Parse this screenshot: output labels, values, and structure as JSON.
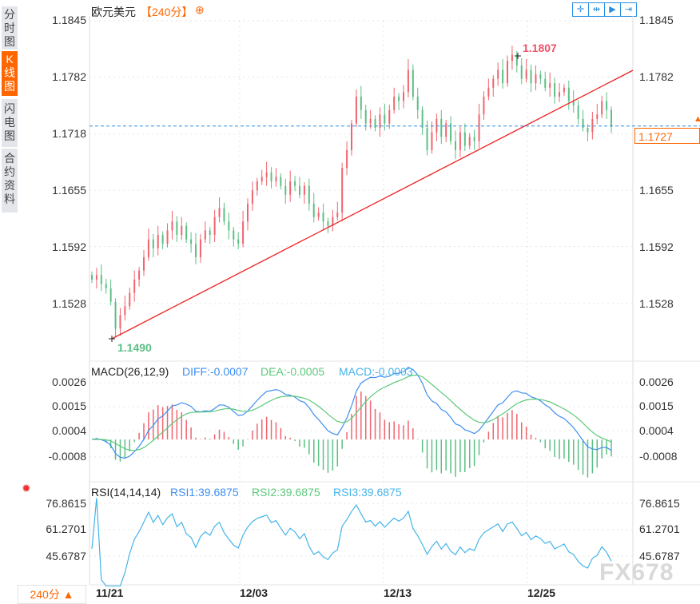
{
  "sidebar": {
    "tabs": [
      {
        "label": "分时图",
        "active": false
      },
      {
        "label": "K线图",
        "active": true
      },
      {
        "label": "闪电图",
        "active": false
      },
      {
        "label": "合约资料",
        "active": false
      }
    ]
  },
  "header": {
    "symbol": "欧元美元",
    "period": "【240分】",
    "add_icon": "circle-plus-icon",
    "tools": [
      {
        "name": "crosshair-icon",
        "glyph": "✛"
      },
      {
        "name": "zoom-range-icon",
        "glyph": "⇹"
      },
      {
        "name": "play-icon",
        "glyph": "▶"
      },
      {
        "name": "scroll-end-icon",
        "glyph": "⇥"
      }
    ]
  },
  "colors": {
    "up": "#f0646e",
    "down": "#5cbf85",
    "accent": "#ff6600",
    "trend": "#ee2222",
    "diff": "#3d8ff0",
    "dea": "#5cc97a",
    "rsi": "#45b4e8",
    "dashed": "#2a8ee0"
  },
  "chart_data": {
    "type": "candlestick",
    "price_ticks": [
      "1.1845",
      "1.1782",
      "1.1718",
      "1.1655",
      "1.1592",
      "1.1528"
    ],
    "price_tick_values": [
      1.1845,
      1.1782,
      1.1718,
      1.1655,
      1.1592,
      1.1528
    ],
    "current_price": "1.1727",
    "high_label": "1.1807",
    "low_label": "1.1490",
    "x_ticks": [
      "11/21",
      "12/03",
      "12/13",
      "12/25"
    ],
    "closes": [
      1.1555,
      1.156,
      1.155,
      1.1545,
      1.153,
      1.15,
      1.1515,
      1.1525,
      1.154,
      1.1555,
      1.1565,
      1.158,
      1.16,
      1.159,
      1.1605,
      1.1595,
      1.161,
      1.162,
      1.1605,
      1.1615,
      1.16,
      1.1595,
      1.158,
      1.16,
      1.161,
      1.1605,
      1.1625,
      1.1635,
      1.162,
      1.161,
      1.16,
      1.1595,
      1.162,
      1.164,
      1.1655,
      1.1665,
      1.167,
      1.1675,
      1.1665,
      1.167,
      1.166,
      1.165,
      1.1665,
      1.166,
      1.165,
      1.166,
      1.164,
      1.1625,
      1.163,
      1.162,
      1.1615,
      1.1625,
      1.163,
      1.168,
      1.17,
      1.173,
      1.176,
      1.1745,
      1.173,
      1.1735,
      1.1725,
      1.174,
      1.173,
      1.1745,
      1.176,
      1.1755,
      1.1765,
      1.179,
      1.176,
      1.1745,
      1.1725,
      1.17,
      1.172,
      1.1735,
      1.1715,
      1.173,
      1.171,
      1.17,
      1.172,
      1.1705,
      1.1715,
      1.171,
      1.174,
      1.176,
      1.177,
      1.178,
      1.179,
      1.1775,
      1.18,
      1.1807,
      1.1795,
      1.178,
      1.179,
      1.1775,
      1.1785,
      1.178,
      1.177,
      1.1775,
      1.176,
      1.1765,
      1.177,
      1.1755,
      1.175,
      1.1735,
      1.1725,
      1.172,
      1.1735,
      1.174,
      1.1755,
      1.1745,
      1.1727
    ],
    "macd": {
      "label": "MACD(26,12,9)",
      "diff": "DIFF:-0.0007",
      "dea": "DEA:-0.0005",
      "macd": "MACD:-0.0003",
      "ticks": [
        "0.0026",
        "0.0015",
        "0.0004",
        "-0.0008"
      ],
      "tick_values": [
        0.0026,
        0.0015,
        0.0004,
        -0.0008
      ]
    },
    "rsi": {
      "label": "RSI(14,14,14)",
      "rsi1": "RSI1:39.6875",
      "rsi2": "RSI2:39.6875",
      "rsi3": "RSI3:39.6875",
      "ticks": [
        "76.8615",
        "61.2701",
        "45.6787"
      ],
      "tick_values": [
        76.8615,
        61.2701,
        45.6787
      ]
    }
  },
  "footer": {
    "period_button": "240分 ▲",
    "watermark": "FX678"
  }
}
